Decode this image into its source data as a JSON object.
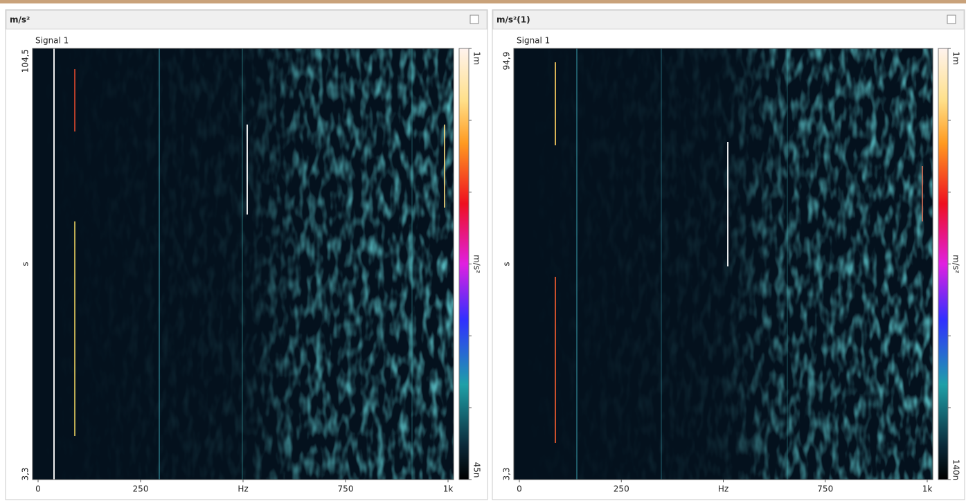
{
  "panels": [
    {
      "title": "m/s²",
      "signal": "Signal 1",
      "x_labels": [
        "0",
        "250",
        "Hz",
        "750",
        "1k"
      ],
      "y_labels": [
        "104,5",
        "s",
        "3,3"
      ],
      "colorbar_labels": [
        "1m",
        "m/s²",
        "45n"
      ]
    },
    {
      "title": "m/s²(1)",
      "signal": "Signal 1",
      "x_labels": [
        "0",
        "250",
        "Hz",
        "750",
        "1k"
      ],
      "y_labels": [
        "94,9",
        "s",
        "3,3"
      ],
      "colorbar_labels": [
        "1m",
        "m/s²",
        "140n"
      ]
    }
  ]
}
